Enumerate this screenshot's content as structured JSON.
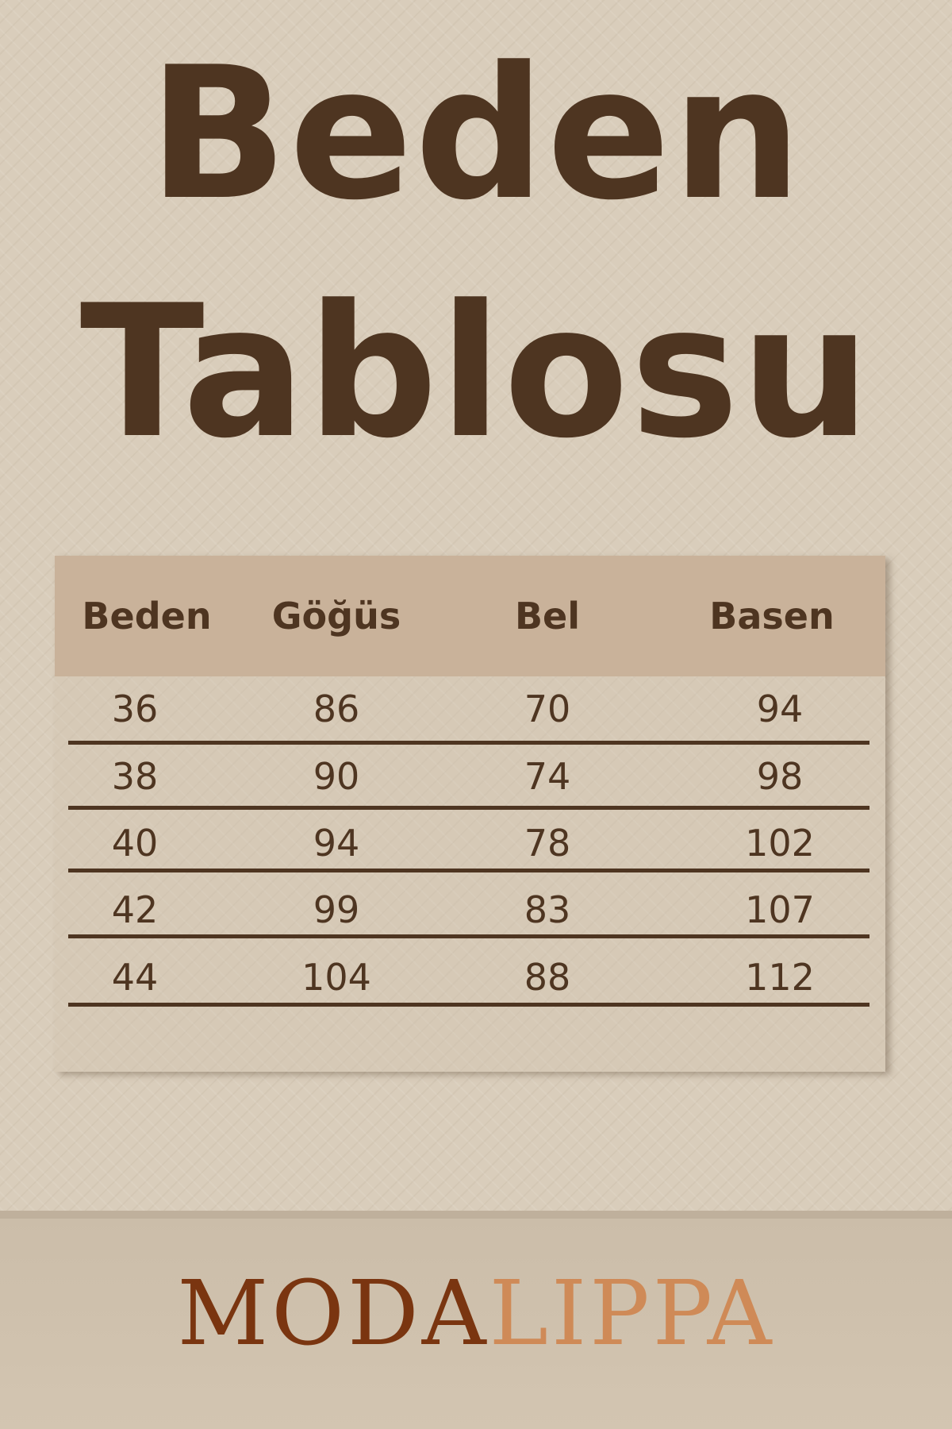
{
  "title": {
    "line1": "Beden",
    "line2": "Tablosu"
  },
  "table": {
    "headers": [
      "Beden",
      "Göğüs",
      "Bel",
      "Basen"
    ],
    "rows": [
      [
        "36",
        "86",
        "70",
        "94"
      ],
      [
        "38",
        "90",
        "74",
        "98"
      ],
      [
        "40",
        "94",
        "78",
        "102"
      ],
      [
        "42",
        "99",
        "83",
        "107"
      ],
      [
        "44",
        "104",
        "88",
        "112"
      ]
    ]
  },
  "brand": {
    "part1": "MODA",
    "part2": "LIPPA",
    "color1": "#7a3510",
    "color2": "#cf8a57"
  },
  "colors": {
    "text": "#4e3521",
    "header_bg": "#c9b29a",
    "background": "#d9cdbb"
  }
}
